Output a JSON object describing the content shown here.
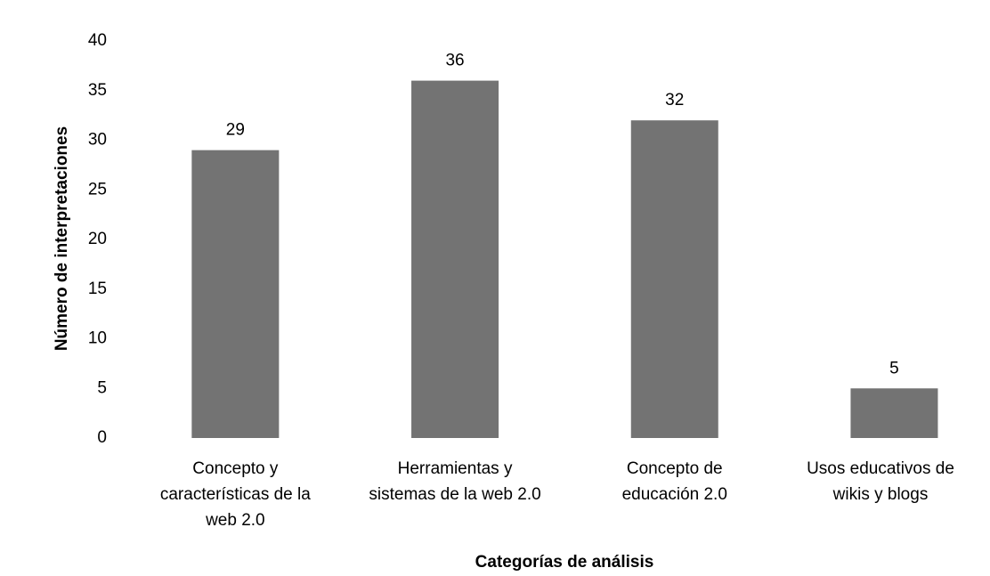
{
  "chart_data": {
    "type": "bar",
    "categories": [
      "Concepto y\ncaracterísticas de la\nweb 2.0",
      "Herramientas y\nsistemas de la web 2.0",
      "Concepto de\neducación 2.0",
      "Usos educativos de\nwikis y blogs"
    ],
    "values": [
      29,
      36,
      32,
      5
    ],
    "color": "#737373",
    "ylim": [
      0,
      40
    ],
    "yticks": [
      0,
      5,
      10,
      15,
      20,
      25,
      30,
      35,
      40
    ],
    "grid": false,
    "x_label": "Categorías de análisis",
    "y_label": "Número de interpretaciones"
  }
}
